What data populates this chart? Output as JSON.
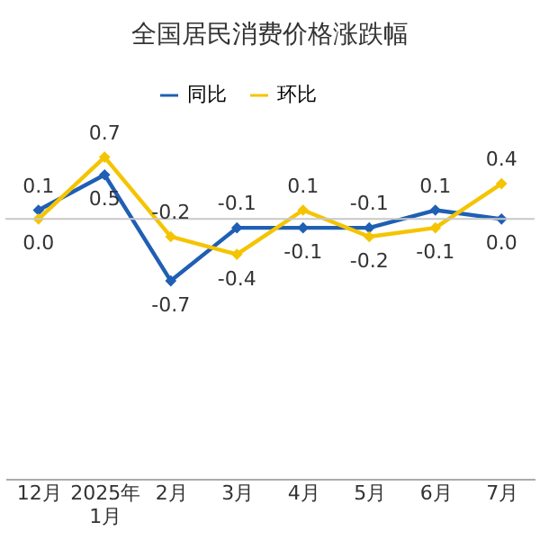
{
  "chart_data": {
    "type": "line",
    "title": "全国居民消费价格涨跌幅",
    "categories": [
      "12月",
      "2025年\n1月",
      "2月",
      "3月",
      "4月",
      "5月",
      "6月",
      "7月"
    ],
    "series": [
      {
        "name": "同比",
        "color": "#1f5fb4",
        "values": [
          0.1,
          0.5,
          -0.7,
          -0.1,
          -0.1,
          -0.1,
          0.1,
          0.0
        ],
        "value_labels": [
          "0.1",
          "0.5",
          "-0.7",
          "-0.1",
          "-0.1",
          "-0.1",
          "0.1",
          "0.0"
        ]
      },
      {
        "name": "环比",
        "color": "#f5c400",
        "values": [
          0.0,
          0.7,
          -0.2,
          -0.4,
          0.1,
          -0.2,
          -0.1,
          0.4
        ],
        "value_labels": [
          "0.0",
          "0.7",
          "-0.2",
          "-0.4",
          "0.1",
          "-0.2",
          "-0.1",
          "0.4"
        ]
      }
    ],
    "marker": "diamond",
    "legend": "top",
    "grid": false,
    "tick_labels": "x",
    "ref_lines": [
      {
        "axis": "y",
        "value": 0,
        "color": "#c8c8c8"
      }
    ]
  }
}
